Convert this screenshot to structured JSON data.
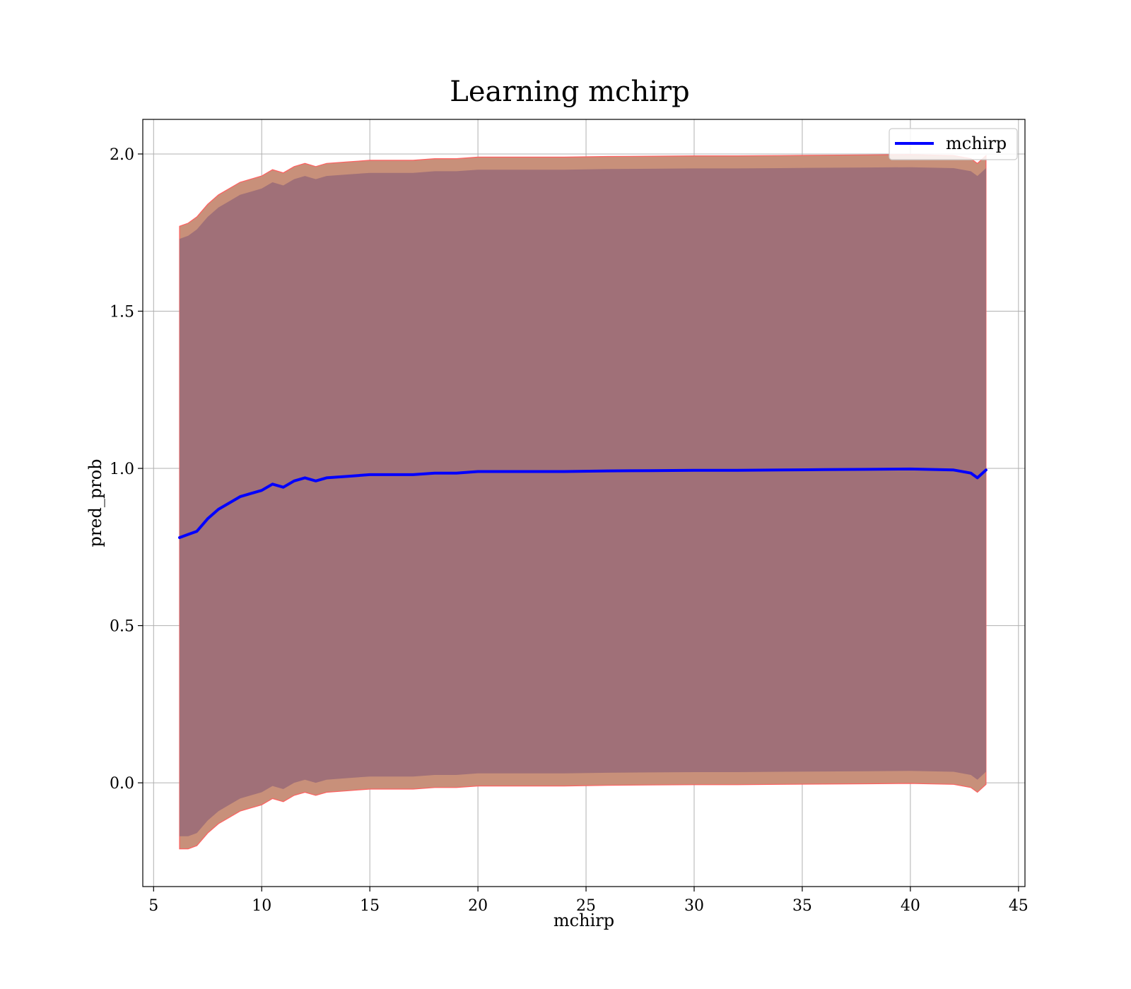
{
  "chart_data": {
    "type": "line",
    "title": "Learning mchirp",
    "xlabel": "mchirp",
    "ylabel": "pred_prob",
    "xlim": [
      4.5,
      45.3
    ],
    "ylim": [
      -0.33,
      2.11
    ],
    "x_ticks": [
      5,
      10,
      15,
      20,
      25,
      30,
      35,
      40,
      45
    ],
    "y_ticks": [
      0.0,
      0.5,
      1.0,
      1.5,
      2.0
    ],
    "x_tick_labels": [
      "5",
      "10",
      "15",
      "20",
      "25",
      "30",
      "35",
      "40",
      "45"
    ],
    "y_tick_labels": [
      "0.0",
      "0.5",
      "1.0",
      "1.5",
      "2.0"
    ],
    "grid": true,
    "legend": {
      "position": "top-right",
      "entries": [
        "mchirp"
      ]
    },
    "colors": {
      "line": "#0000ff",
      "band_outer": "#c8907a",
      "band_inner": "#a07078",
      "band_edge": "#ff6060",
      "grid": "#b0b0b0"
    },
    "x": [
      6.2,
      6.6,
      7.0,
      7.5,
      8.0,
      8.5,
      9.0,
      9.5,
      10.0,
      10.5,
      11.0,
      11.5,
      12.0,
      12.5,
      13.0,
      14.0,
      15.0,
      16.0,
      17.0,
      18.0,
      19.0,
      20.0,
      22.0,
      24.0,
      26.0,
      28.0,
      30.0,
      32.0,
      34.0,
      36.0,
      38.0,
      40.0,
      42.0,
      42.8,
      43.1,
      43.5
    ],
    "series": [
      {
        "name": "mchirp",
        "values": [
          0.78,
          0.79,
          0.8,
          0.84,
          0.87,
          0.89,
          0.91,
          0.92,
          0.93,
          0.95,
          0.94,
          0.96,
          0.97,
          0.96,
          0.97,
          0.975,
          0.98,
          0.98,
          0.98,
          0.985,
          0.985,
          0.99,
          0.99,
          0.99,
          0.992,
          0.993,
          0.994,
          0.994,
          0.995,
          0.996,
          0.997,
          0.998,
          0.995,
          0.985,
          0.97,
          0.995
        ],
        "band_outer_upper": [
          1.77,
          1.78,
          1.8,
          1.84,
          1.87,
          1.89,
          1.91,
          1.92,
          1.93,
          1.95,
          1.94,
          1.96,
          1.97,
          1.96,
          1.97,
          1.975,
          1.98,
          1.98,
          1.98,
          1.985,
          1.985,
          1.99,
          1.99,
          1.99,
          1.992,
          1.993,
          1.994,
          1.994,
          1.995,
          1.996,
          1.997,
          1.998,
          1.995,
          1.985,
          1.97,
          1.995
        ],
        "band_outer_lower": [
          -0.21,
          -0.21,
          -0.2,
          -0.16,
          -0.13,
          -0.11,
          -0.09,
          -0.08,
          -0.07,
          -0.05,
          -0.06,
          -0.04,
          -0.03,
          -0.04,
          -0.03,
          -0.025,
          -0.02,
          -0.02,
          -0.02,
          -0.015,
          -0.015,
          -0.01,
          -0.01,
          -0.01,
          -0.008,
          -0.007,
          -0.006,
          -0.006,
          -0.005,
          -0.004,
          -0.003,
          -0.002,
          -0.005,
          -0.015,
          -0.03,
          -0.005
        ],
        "band_inner_upper": [
          1.73,
          1.74,
          1.76,
          1.8,
          1.83,
          1.85,
          1.87,
          1.88,
          1.89,
          1.91,
          1.9,
          1.92,
          1.93,
          1.92,
          1.93,
          1.935,
          1.94,
          1.94,
          1.94,
          1.945,
          1.945,
          1.95,
          1.95,
          1.95,
          1.952,
          1.953,
          1.954,
          1.954,
          1.955,
          1.956,
          1.957,
          1.958,
          1.955,
          1.945,
          1.93,
          1.955
        ],
        "band_inner_lower": [
          -0.17,
          -0.17,
          -0.16,
          -0.12,
          -0.09,
          -0.07,
          -0.05,
          -0.04,
          -0.03,
          -0.01,
          -0.02,
          0.0,
          0.01,
          0.0,
          0.01,
          0.015,
          0.02,
          0.02,
          0.02,
          0.025,
          0.025,
          0.03,
          0.03,
          0.03,
          0.032,
          0.033,
          0.034,
          0.034,
          0.035,
          0.036,
          0.037,
          0.038,
          0.035,
          0.025,
          0.01,
          0.035
        ]
      }
    ]
  }
}
